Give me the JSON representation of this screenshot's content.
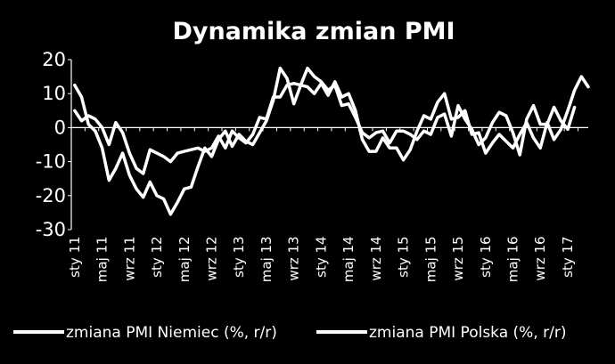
{
  "chart_data": {
    "type": "line",
    "title": "Dynamika zmian PMI",
    "xlabel": "",
    "ylabel": "",
    "ylim": [
      -30,
      20
    ],
    "yticks": [
      20,
      10,
      0,
      -10,
      -20,
      -30
    ],
    "grid": false,
    "legend_position": "bottom",
    "x_start": "2011-01",
    "x_labels": [
      "sty 11",
      "maj 11",
      "wrz 11",
      "sty 12",
      "maj 12",
      "wrz 12",
      "sty 13",
      "maj 13",
      "wrz 13",
      "sty 14",
      "maj 14",
      "wrz 14",
      "sty 15",
      "maj 15",
      "wrz 15",
      "sty 16",
      "maj 16",
      "wrz 16",
      "sty 17"
    ],
    "series": [
      {
        "name": "zmiana PMI Niemiec (%, r/r)",
        "color": "#ffffff",
        "values": [
          12.5,
          9,
          1,
          -1,
          -6,
          -15.5,
          -12,
          -7.5,
          -14,
          -18,
          -20.5,
          -16,
          -20,
          -21,
          -25.5,
          -22,
          -18,
          -17.5,
          -11.5,
          -6,
          -8.5,
          -3.5,
          -1,
          -5.5,
          -2,
          -4,
          -5,
          -1.5,
          2,
          8,
          17.5,
          14.5,
          7,
          12.5,
          12,
          10,
          13,
          9.5,
          13.5,
          9,
          10,
          5,
          -3.5,
          -7,
          -7,
          -3,
          -6,
          -6,
          -9.5,
          -6.5,
          -1,
          3.5,
          2.5,
          7.5,
          10,
          2.5,
          3,
          5,
          -2,
          -1.5,
          -7.5,
          -4.5,
          -2,
          -4,
          -6,
          -2,
          1.5,
          -3,
          -6,
          1.5,
          -3.5,
          -0.5,
          5,
          11,
          15,
          12
        ]
      },
      {
        "name": "zmiana PMI Polska (%, r/r)",
        "color": "#ffffff",
        "values": [
          5,
          2,
          3.5,
          2.5,
          0,
          -5,
          1.5,
          -1.5,
          -7.5,
          -12,
          -13.5,
          -6.5,
          -7.5,
          -8.5,
          -10,
          -7.5,
          -7,
          -6.5,
          -6,
          -7,
          -6,
          -2.5,
          -6,
          -1,
          -3,
          -4.5,
          -2,
          3,
          2.5,
          9,
          9,
          12.5,
          13,
          12.5,
          17.5,
          15,
          13.5,
          11,
          12.5,
          6.5,
          7,
          3,
          -1.5,
          -3,
          -1.5,
          -1,
          -4.5,
          -1,
          -1,
          -2,
          -3.5,
          -1,
          -2,
          3,
          4,
          -2.5,
          6.5,
          2.5,
          -0.5,
          -5,
          -3,
          1.5,
          4.5,
          3.5,
          -1.5,
          -8,
          2.5,
          6.5,
          1,
          1,
          6,
          2,
          -0.5,
          6
        ]
      }
    ]
  }
}
